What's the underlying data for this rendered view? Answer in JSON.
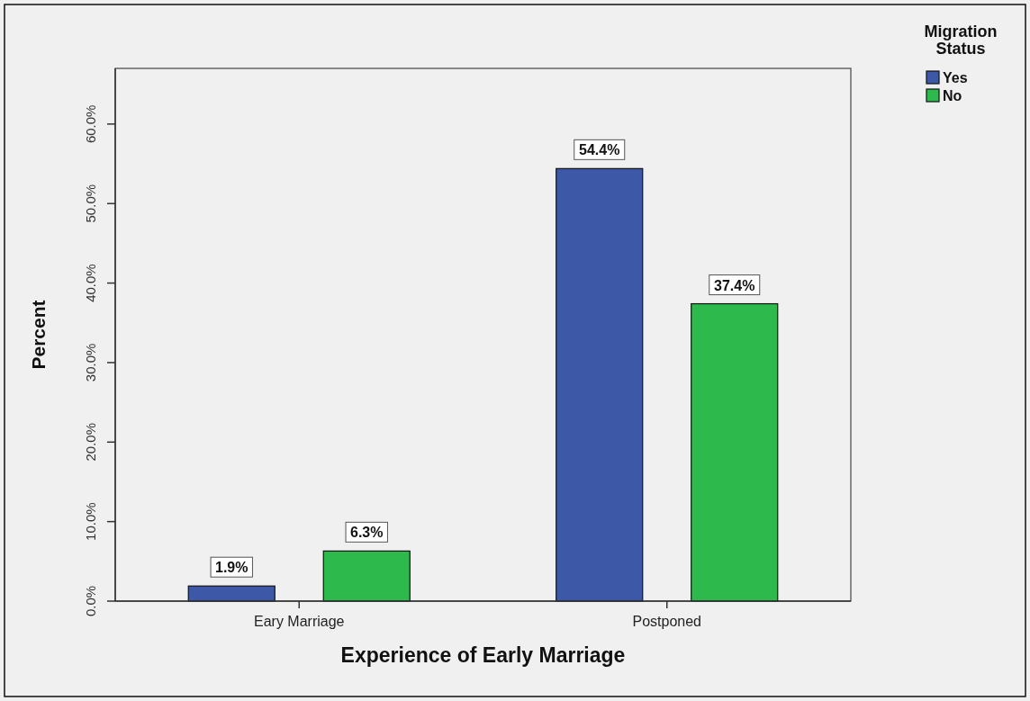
{
  "chart_data": {
    "type": "bar",
    "xlabel": "Experience of Early Marriage",
    "ylabel": "Percent",
    "legend_title": "Migration Status",
    "categories": [
      "Eary Marriage",
      "Postponed"
    ],
    "series": [
      {
        "name": "Yes",
        "color": "#3e58a8",
        "values": [
          1.9,
          54.4
        ],
        "value_labels": [
          "1.9%",
          "54.4%"
        ]
      },
      {
        "name": "No",
        "color": "#2eb94c",
        "values": [
          6.3,
          37.4
        ],
        "value_labels": [
          "6.3%",
          "37.4%"
        ]
      }
    ],
    "ylim": [
      0,
      67
    ],
    "yticks": [
      {
        "value": 0,
        "label": "0.0%"
      },
      {
        "value": 10,
        "label": "10.0%"
      },
      {
        "value": 20,
        "label": "20.0%"
      },
      {
        "value": 30,
        "label": "30.0%"
      },
      {
        "value": 40,
        "label": "40.0%"
      },
      {
        "value": 50,
        "label": "50.0%"
      },
      {
        "value": 60,
        "label": "60.0%"
      }
    ],
    "grid": false,
    "legend": "top right"
  }
}
